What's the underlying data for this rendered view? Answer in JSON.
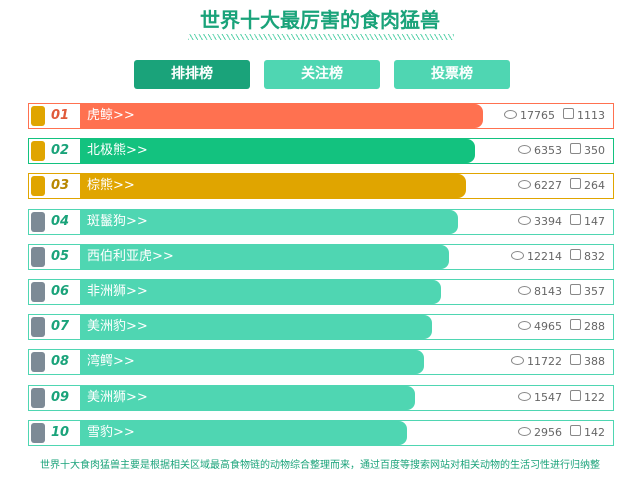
{
  "header": {
    "title": "世界十大最厉害的食肉猛兽"
  },
  "tabs": [
    "排排榜",
    "关注榜",
    "投票榜"
  ],
  "rows": [
    {
      "rank": "01",
      "name": "虎鲸>>",
      "views": 17765,
      "likes": 1113
    },
    {
      "rank": "02",
      "name": "北极熊>>",
      "views": 6353,
      "likes": 350
    },
    {
      "rank": "03",
      "name": "棕熊>>",
      "views": 6227,
      "likes": 264
    },
    {
      "rank": "04",
      "name": "斑鬣狗>>",
      "views": 3394,
      "likes": 147
    },
    {
      "rank": "05",
      "name": "西伯利亚虎>>",
      "views": 12214,
      "likes": 832
    },
    {
      "rank": "06",
      "name": "非洲狮>>",
      "views": 8143,
      "likes": 357
    },
    {
      "rank": "07",
      "name": "美洲豹>>",
      "views": 4965,
      "likes": 288
    },
    {
      "rank": "08",
      "name": "湾鳄>>",
      "views": 11722,
      "likes": 388
    },
    {
      "rank": "09",
      "name": "美洲狮>>",
      "views": 1547,
      "likes": 122
    },
    {
      "rank": "10",
      "name": "雪豹>>",
      "views": 2956,
      "likes": 142
    }
  ],
  "footer": "世界十大食肉猛兽主要是根据相关区域最高食物链的动物综合整理而来，通过百度等搜索网站对相关动物的生活习性进行归纳整"
}
